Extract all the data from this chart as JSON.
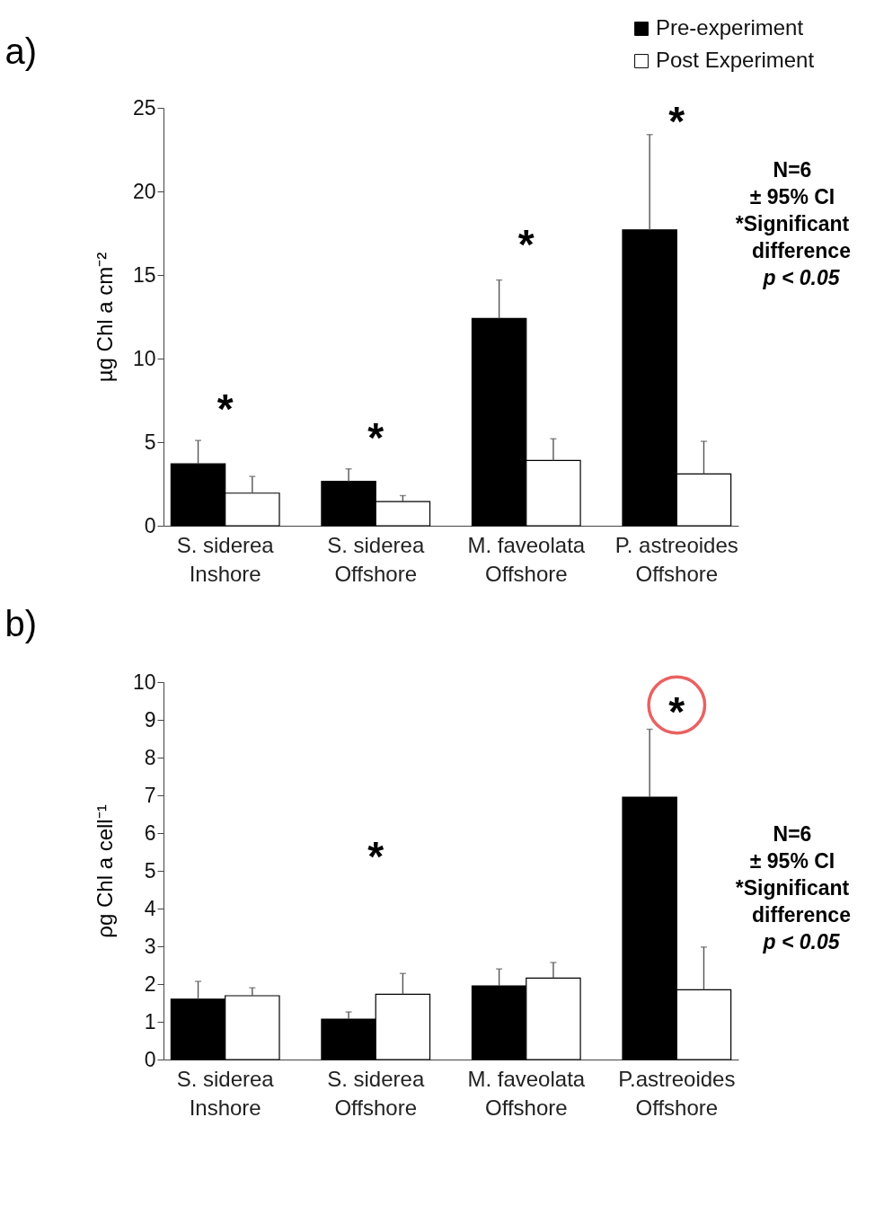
{
  "chart_data": [
    {
      "type": "bar",
      "title": "a)",
      "ylabel": "µg Chl a cm⁻²",
      "categories": [
        "S. siderea\nInshore",
        "S. siderea\nOffshore",
        "M. faveolata\nOffshore",
        "P. astreoides\nOffshore"
      ],
      "series": [
        {
          "name": "Pre-experiment",
          "color": "#000000",
          "values": [
            3.7,
            2.65,
            12.4,
            17.7
          ],
          "errors": [
            [
              3.7,
              5.1
            ],
            [
              2.65,
              3.4
            ],
            [
              12.4,
              14.7
            ],
            [
              17.7,
              23.4
            ]
          ]
        },
        {
          "name": "Post Experiment",
          "color": "#ffffff",
          "values": [
            1.95,
            1.45,
            3.9,
            3.1
          ],
          "errors": [
            [
              1.95,
              2.95
            ],
            [
              1.45,
              1.8
            ],
            [
              3.9,
              5.2
            ],
            [
              3.1,
              5.05
            ]
          ]
        }
      ],
      "ylim": [
        0,
        25
      ],
      "yticks": [
        0,
        5,
        10,
        15,
        20,
        25
      ],
      "grid": false,
      "legend": "top right",
      "annotations": [
        "*",
        "*",
        "*",
        "*",
        "N=6",
        "± 95% CI",
        "*Significant",
        "difference",
        "p < 0.05"
      ]
    },
    {
      "type": "bar",
      "title": "b)",
      "ylabel": "ρg Chl a cell⁻¹",
      "categories": [
        "S. siderea\nInshore",
        "S. siderea\nOffshore",
        "M. faveolata\nOffshore",
        "P.astreoides\nOffshore"
      ],
      "series": [
        {
          "name": "Pre-experiment",
          "color": "#000000",
          "values": [
            1.6,
            1.07,
            1.95,
            6.95
          ],
          "errors": [
            [
              1.6,
              2.07
            ],
            [
              1.07,
              1.26
            ],
            [
              1.95,
              2.4
            ],
            [
              6.95,
              8.75
            ]
          ]
        },
        {
          "name": "Post Experiment",
          "color": "#ffffff",
          "values": [
            1.69,
            1.73,
            2.16,
            1.85
          ],
          "errors": [
            [
              1.69,
              1.9
            ],
            [
              1.73,
              2.28
            ],
            [
              2.16,
              2.57
            ],
            [
              1.85,
              2.98
            ]
          ]
        }
      ],
      "ylim": [
        0,
        10
      ],
      "yticks": [
        0,
        1,
        2,
        3,
        4,
        5,
        6,
        7,
        8,
        9,
        10
      ],
      "grid": false,
      "legend": "top right",
      "annotations": [
        "*",
        "*",
        "N=6",
        "± 95% CI",
        "*Significant",
        "difference",
        "p < 0.05"
      ]
    }
  ]
}
